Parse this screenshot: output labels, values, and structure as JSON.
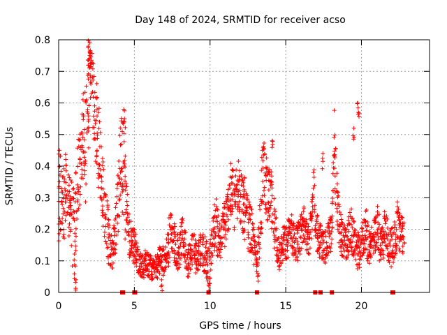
{
  "chart_data": {
    "type": "scatter",
    "title": "Day 148 of 2024, SRMTID for receiver acso",
    "xlabel": "GPS time / hours",
    "ylabel": "SRMTID / TECUs",
    "xlim": [
      0,
      24.5
    ],
    "ylim": [
      0,
      0.8
    ],
    "xticks": [
      0,
      5,
      10,
      15,
      20
    ],
    "xtick_labels": [
      "0",
      "5",
      "10",
      "15",
      "20"
    ],
    "yticks": [
      0,
      0.1,
      0.2,
      0.3,
      0.4,
      0.5,
      0.6,
      0.7,
      0.8
    ],
    "ytick_labels": [
      "0",
      "0.1",
      "0.2",
      "0.3",
      "0.4",
      "0.5",
      "0.6",
      "0.7",
      "0.8"
    ],
    "grid": true,
    "marker": "plus",
    "color": "#ff0000",
    "series": [
      {
        "name": "SRMTID",
        "x": [
          0.0,
          0.15,
          0.3,
          0.45,
          0.6,
          0.75,
          0.9,
          1.05,
          1.2,
          1.35,
          1.5,
          1.65,
          1.8,
          1.95,
          2.05,
          2.15,
          2.3,
          2.45,
          2.6,
          2.75,
          2.9,
          3.05,
          3.2,
          3.35,
          3.5,
          3.65,
          3.8,
          3.95,
          4.1,
          4.25,
          4.4,
          4.55,
          4.7,
          4.85,
          5.0,
          5.15,
          5.3,
          5.45,
          5.6,
          5.75,
          5.9,
          6.05,
          6.2,
          6.35,
          6.5,
          6.65,
          6.8,
          6.95,
          7.1,
          7.25,
          7.4,
          7.55,
          7.7,
          7.85,
          8.0,
          8.15,
          8.3,
          8.45,
          8.6,
          8.75,
          8.9,
          9.05,
          9.2,
          9.35,
          9.5,
          9.65,
          9.8,
          9.95,
          10.1,
          10.25,
          10.4,
          10.55,
          10.7,
          10.85,
          11.0,
          11.15,
          11.3,
          11.45,
          11.6,
          11.75,
          11.9,
          12.05,
          12.2,
          12.35,
          12.5,
          12.65,
          12.8,
          12.95,
          13.1,
          13.25,
          13.4,
          13.55,
          13.7,
          13.85,
          14.0,
          14.15,
          14.3,
          14.45,
          14.6,
          14.75,
          14.9,
          15.05,
          15.2,
          15.35,
          15.5,
          15.65,
          15.8,
          15.95,
          16.1,
          16.25,
          16.4,
          16.55,
          16.7,
          16.85,
          17.0,
          17.15,
          17.3,
          17.45,
          17.6,
          17.75,
          17.9,
          18.05,
          18.2,
          18.35,
          18.5,
          18.65,
          18.8,
          18.95,
          19.1,
          19.25,
          19.4,
          19.55,
          19.7,
          19.85,
          20.0,
          20.15,
          20.3,
          20.45,
          20.6,
          20.75,
          20.9,
          21.05,
          21.2,
          21.35,
          21.5,
          21.65,
          21.8,
          21.95,
          22.1,
          22.25,
          22.4,
          22.55,
          22.7
        ],
        "y": [
          0.28,
          0.32,
          0.24,
          0.35,
          0.3,
          0.26,
          0.22,
          0.18,
          0.3,
          0.37,
          0.42,
          0.5,
          0.45,
          0.6,
          0.75,
          0.68,
          0.62,
          0.55,
          0.5,
          0.4,
          0.32,
          0.26,
          0.2,
          0.15,
          0.12,
          0.17,
          0.22,
          0.3,
          0.45,
          0.38,
          0.3,
          0.22,
          0.18,
          0.16,
          0.15,
          0.12,
          0.1,
          0.09,
          0.08,
          0.1,
          0.09,
          0.08,
          0.07,
          0.09,
          0.08,
          0.1,
          0.11,
          0.09,
          0.12,
          0.15,
          0.2,
          0.18,
          0.15,
          0.13,
          0.14,
          0.18,
          0.16,
          0.12,
          0.1,
          0.13,
          0.15,
          0.11,
          0.12,
          0.14,
          0.13,
          0.12,
          0.1,
          0.08,
          0.15,
          0.2,
          0.22,
          0.18,
          0.16,
          0.2,
          0.22,
          0.25,
          0.3,
          0.32,
          0.28,
          0.3,
          0.35,
          0.3,
          0.28,
          0.25,
          0.22,
          0.2,
          0.18,
          0.12,
          0.1,
          0.2,
          0.3,
          0.4,
          0.35,
          0.28,
          0.3,
          0.25,
          0.2,
          0.15,
          0.12,
          0.14,
          0.16,
          0.15,
          0.18,
          0.2,
          0.17,
          0.15,
          0.16,
          0.18,
          0.2,
          0.22,
          0.19,
          0.18,
          0.2,
          0.35,
          0.2,
          0.18,
          0.16,
          0.15,
          0.14,
          0.16,
          0.18,
          0.19,
          0.5,
          0.3,
          0.22,
          0.18,
          0.16,
          0.15,
          0.17,
          0.2,
          0.18,
          0.16,
          0.14,
          0.12,
          0.15,
          0.18,
          0.2,
          0.16,
          0.14,
          0.16,
          0.18,
          0.2,
          0.17,
          0.15,
          0.18,
          0.2,
          0.16,
          0.14,
          0.15,
          0.18,
          0.22,
          0.2,
          0.18
        ],
        "jitter": [
          0.12,
          0.1,
          0.12,
          0.1,
          0.1,
          0.12,
          0.14,
          0.15,
          0.15,
          0.12,
          0.15,
          0.18,
          0.2,
          0.22,
          0.12,
          0.12,
          0.15,
          0.15,
          0.15,
          0.14,
          0.12,
          0.1,
          0.1,
          0.06,
          0.06,
          0.08,
          0.1,
          0.15,
          0.15,
          0.14,
          0.1,
          0.08,
          0.06,
          0.06,
          0.06,
          0.05,
          0.04,
          0.04,
          0.04,
          0.04,
          0.04,
          0.04,
          0.03,
          0.04,
          0.04,
          0.05,
          0.05,
          0.04,
          0.06,
          0.08,
          0.06,
          0.06,
          0.06,
          0.06,
          0.06,
          0.06,
          0.06,
          0.06,
          0.05,
          0.06,
          0.06,
          0.05,
          0.05,
          0.06,
          0.06,
          0.06,
          0.06,
          0.06,
          0.06,
          0.08,
          0.08,
          0.06,
          0.06,
          0.08,
          0.08,
          0.08,
          0.1,
          0.1,
          0.1,
          0.1,
          0.1,
          0.1,
          0.1,
          0.08,
          0.08,
          0.08,
          0.06,
          0.05,
          0.05,
          0.1,
          0.12,
          0.1,
          0.1,
          0.1,
          0.1,
          0.08,
          0.08,
          0.06,
          0.05,
          0.06,
          0.06,
          0.06,
          0.06,
          0.06,
          0.06,
          0.06,
          0.06,
          0.06,
          0.06,
          0.06,
          0.06,
          0.06,
          0.06,
          0.08,
          0.06,
          0.06,
          0.06,
          0.05,
          0.05,
          0.06,
          0.06,
          0.06,
          0.1,
          0.1,
          0.08,
          0.06,
          0.06,
          0.06,
          0.06,
          0.08,
          0.06,
          0.06,
          0.06,
          0.05,
          0.06,
          0.06,
          0.08,
          0.06,
          0.06,
          0.06,
          0.06,
          0.08,
          0.06,
          0.06,
          0.08,
          0.08,
          0.06,
          0.06,
          0.06,
          0.08,
          0.08,
          0.06,
          0.06
        ],
        "peaks": [
          {
            "x": 2.05,
            "y": 0.79
          },
          {
            "x": 2.1,
            "y": 0.76
          },
          {
            "x": 1.95,
            "y": 0.72
          },
          {
            "x": 4.3,
            "y": 0.58
          },
          {
            "x": 4.35,
            "y": 0.55
          },
          {
            "x": 14.1,
            "y": 0.48
          },
          {
            "x": 17.45,
            "y": 0.44
          },
          {
            "x": 19.75,
            "y": 0.6
          },
          {
            "x": 19.8,
            "y": 0.57
          },
          {
            "x": 19.5,
            "y": 0.52
          },
          {
            "x": 0.05,
            "y": 0.45
          },
          {
            "x": 1.15,
            "y": 0.04
          },
          {
            "x": 6.8,
            "y": 0.04
          },
          {
            "x": 9.95,
            "y": 0.03
          },
          {
            "x": 13.15,
            "y": 0.06
          }
        ]
      }
    ],
    "baseline_markers_x": [
      4.2,
      4.25,
      5.0,
      5.05,
      9.9,
      13.1,
      16.95,
      17.3,
      18.05,
      22.05,
      22.1
    ]
  }
}
